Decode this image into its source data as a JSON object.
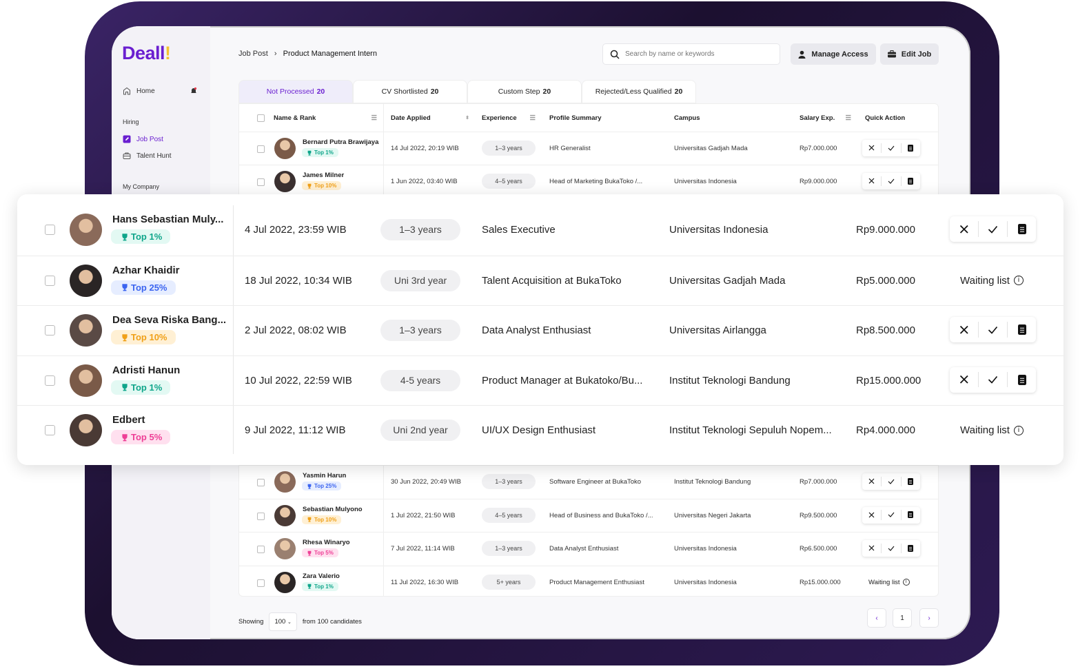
{
  "app": {
    "logo": "Deall",
    "logo_mark": "!"
  },
  "colors": {
    "brand": "#6a1fd0",
    "accent": "#f5c232",
    "frame": "#2a1a4a"
  },
  "sidebar": {
    "home": "Home",
    "hiring_heading": "Hiring",
    "items": [
      {
        "label": "Job Post",
        "active": true,
        "icon": "edit-square-icon"
      },
      {
        "label": "Talent Hunt",
        "icon": "briefcase-icon"
      }
    ],
    "company_heading": "My Company"
  },
  "breadcrumb": {
    "parent": "Job Post",
    "current": "Product Management Intern"
  },
  "search": {
    "placeholder": "Search by name or keywords",
    "value": ""
  },
  "buttons": {
    "manage_access": "Manage Access",
    "edit_job": "Edit Job"
  },
  "tabs": [
    {
      "label": "Not Processed",
      "count": "20",
      "active": true
    },
    {
      "label": "CV Shortlisted",
      "count": "20"
    },
    {
      "label": "Custom Step",
      "count": "20"
    },
    {
      "label": "Rejected/Less Qualified",
      "count": "20"
    }
  ],
  "columns": [
    "Name & Rank",
    "Date Applied",
    "Experience",
    "Profile Summary",
    "Campus",
    "Salary Exp.",
    "Quick Action"
  ],
  "ranks": {
    "Top 1%": {
      "bg": "#e3f9f3",
      "fg": "#0ea58a"
    },
    "Top 25%": {
      "bg": "#e6edff",
      "fg": "#3b64f0"
    },
    "Top 10%": {
      "bg": "#fff0d4",
      "fg": "#f0a018"
    },
    "Top 5%": {
      "bg": "#ffe0ef",
      "fg": "#ee3f96"
    }
  },
  "rows_top": [
    {
      "name": "Bernard Putra Brawijaya",
      "rank": "Top 1%",
      "date": "14 Jul 2022, 20:19 WIB",
      "experience": "1–3 years",
      "profile": "HR Generalist",
      "campus": "Universitas Gadjah Mada",
      "salary": "Rp7.000.000",
      "action": "buttons"
    },
    {
      "name": "James Milner",
      "rank": "Top 10%",
      "date": "1 Jun 2022, 03:40 WIB",
      "experience": "4–5 years",
      "profile": "Head of Marketing BukaToko /...",
      "campus": "Universitas Indonesia",
      "salary": "Rp9.000.000",
      "action": "buttons"
    }
  ],
  "rows_highlight": [
    {
      "name": "Hans Sebastian Muly...",
      "rank": "Top 1%",
      "date": "4 Jul 2022, 23:59 WIB",
      "experience": "1–3 years",
      "profile": "Sales Executive",
      "campus": "Universitas Indonesia",
      "salary": "Rp9.000.000",
      "action": "buttons"
    },
    {
      "name": "Azhar Khaidir",
      "rank": "Top 25%",
      "date": "18 Jul 2022, 10:34 WIB",
      "experience": "Uni 3rd year",
      "profile": "Talent Acquisition at BukaToko",
      "campus": "Universitas Gadjah Mada",
      "salary": "Rp5.000.000",
      "action": "Waiting list"
    },
    {
      "name": "Dea Seva Riska Bang...",
      "rank": "Top 10%",
      "date": "2 Jul 2022, 08:02 WIB",
      "experience": "1–3 years",
      "profile": "Data Analyst Enthusiast",
      "campus": "Universitas Airlangga",
      "salary": "Rp8.500.000",
      "action": "buttons"
    },
    {
      "name": "Adristi Hanun",
      "rank": "Top 1%",
      "date": "10 Jul 2022, 22:59 WIB",
      "experience": "4-5 years",
      "profile": "Product Manager at Bukatoko/Bu...",
      "campus": "Institut Teknologi Bandung",
      "salary": "Rp15.000.000",
      "action": "buttons"
    },
    {
      "name": "Edbert",
      "rank": "Top 5%",
      "date": "9 Jul 2022, 11:12 WIB",
      "experience": "Uni 2nd year",
      "profile": "UI/UX Design Enthusiast",
      "campus": "Institut Teknologi Sepuluh Nopem...",
      "salary": "Rp4.000.000",
      "action": "Waiting list"
    }
  ],
  "rows_bottom": [
    {
      "name": "Yasmin Harun",
      "rank": "Top 25%",
      "date": "30 Jun 2022, 20:49 WIB",
      "experience": "1–3 years",
      "profile": "Software Engineer at BukaToko",
      "campus": "Institut Teknologi Bandung",
      "salary": "Rp7.000.000",
      "action": "buttons"
    },
    {
      "name": "Sebastian Mulyono",
      "rank": "Top 10%",
      "date": "1 Jul 2022, 21:50 WIB",
      "experience": "4–5 years",
      "profile": "Head of Business and BukaToko /...",
      "campus": "Universitas Negeri Jakarta",
      "salary": "Rp9.500.000",
      "action": "buttons"
    },
    {
      "name": "Rhesa Winaryo",
      "rank": "Top 5%",
      "date": "7 Jul 2022, 11:14 WIB",
      "experience": "1–3 years",
      "profile": "Data Analyst Enthusiast",
      "campus": "Universitas Indonesia",
      "salary": "Rp6.500.000",
      "action": "buttons"
    },
    {
      "name": "Zara Valerio",
      "rank": "Top 1%",
      "date": "11 Jul 2022, 16:30 WIB",
      "experience": "5+ years",
      "profile": "Product Management Enthusiast",
      "campus": "Universitas Indonesia",
      "salary": "Rp15.000.000",
      "action": "Waiting list"
    }
  ],
  "footer": {
    "showing": "Showing",
    "page_size": "100",
    "from_text": "from 100 candidates",
    "page": "1"
  }
}
